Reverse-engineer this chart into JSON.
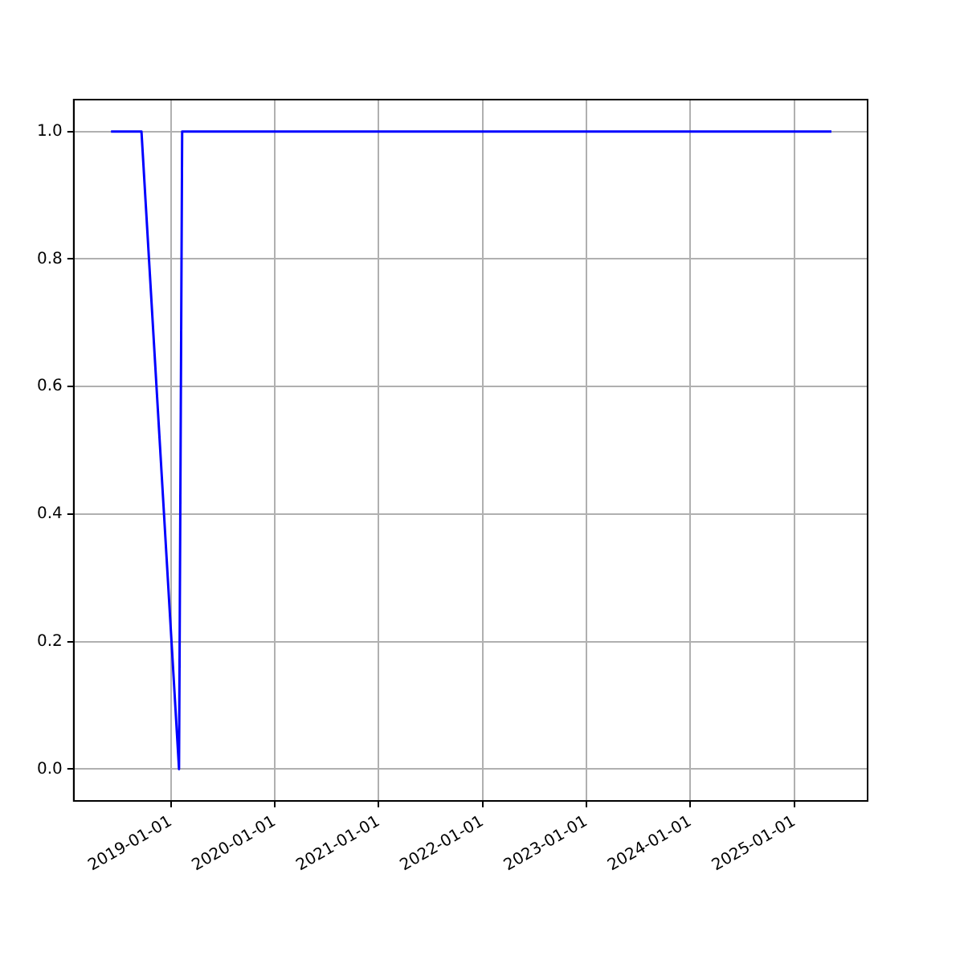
{
  "chart_data": {
    "type": "line",
    "x": [
      "2018-06-05",
      "2018-09-20",
      "2019-01-30",
      "2019-02-10",
      "2025-05-11"
    ],
    "series": [
      {
        "color": "#0000ff",
        "values": [
          1,
          1,
          0,
          1,
          1
        ]
      }
    ],
    "xlim": [
      "2018-01-25",
      "2025-09-15"
    ],
    "xticks": [
      "2019-01-01",
      "2020-01-01",
      "2021-01-01",
      "2022-01-01",
      "2023-01-01",
      "2024-01-01",
      "2025-01-01"
    ],
    "ylim": [
      -0.05,
      1.05
    ],
    "yticks": [
      {
        "value": 0,
        "label": "0.0"
      },
      {
        "value": 0.2,
        "label": "0.2"
      },
      {
        "value": 0.4,
        "label": "0.4"
      },
      {
        "value": 0.6,
        "label": "0.6"
      },
      {
        "value": 0.8,
        "label": "0.8"
      },
      {
        "value": 1,
        "label": "1.0"
      }
    ],
    "grid": true,
    "legend": false,
    "marker": "none",
    "line_style": "solid"
  }
}
